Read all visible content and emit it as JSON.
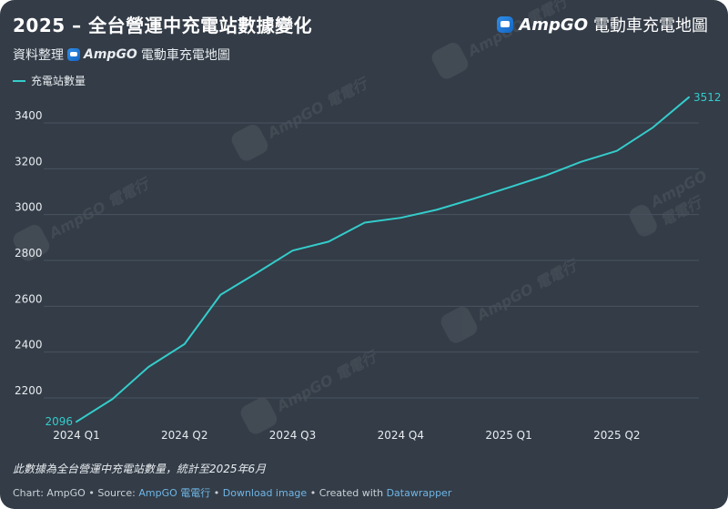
{
  "header": {
    "title": "2025 – 全台營運中充電站數據變化",
    "brand_name": "AmpGO",
    "brand_suffix": "電動車充電地圖"
  },
  "subtitle": {
    "prefix": "資料整理",
    "brand_name": "AmpGO",
    "brand_suffix": "電動車充電地圖"
  },
  "watermark": {
    "text": "AmpGO 電電行"
  },
  "chart_data": {
    "type": "line",
    "title": "2025 – 全台營運中充電站數據變化",
    "legend_position": "top-left",
    "grid": true,
    "ylim": [
      2100,
      3520
    ],
    "yticks": [
      2200,
      2400,
      2600,
      2800,
      3000,
      3200,
      3400
    ],
    "xticks": [
      "2024 Q1",
      "2024 Q2",
      "2024 Q3",
      "2024 Q4",
      "2025 Q1",
      "2025 Q2"
    ],
    "x": [
      "2024-01",
      "2024-02",
      "2024-03",
      "2024-04",
      "2024-05",
      "2024-06",
      "2024-07",
      "2024-08",
      "2024-09",
      "2024-10",
      "2024-11",
      "2024-12",
      "2025-01",
      "2025-02",
      "2025-03",
      "2025-04",
      "2025-05",
      "2025-06"
    ],
    "series": [
      {
        "name": "充電站數量",
        "color": "#34cccb",
        "values": [
          2096,
          2195,
          2335,
          2435,
          2650,
          2745,
          2843,
          2882,
          2965,
          2986,
          3021,
          3068,
          3118,
          3169,
          3230,
          3278,
          3380,
          3512
        ]
      }
    ],
    "data_labels": {
      "first": "2096",
      "last": "3512"
    }
  },
  "footer": {
    "note": "此數據為全台營運中充電站數量，統計至2025年6月",
    "chart_credit": "Chart: AmpGO",
    "source_label": "Source:",
    "source_name": "AmpGO 電電行",
    "download_label": "Download image",
    "created_with_label": "Created with",
    "created_with_name": "Datawrapper"
  }
}
